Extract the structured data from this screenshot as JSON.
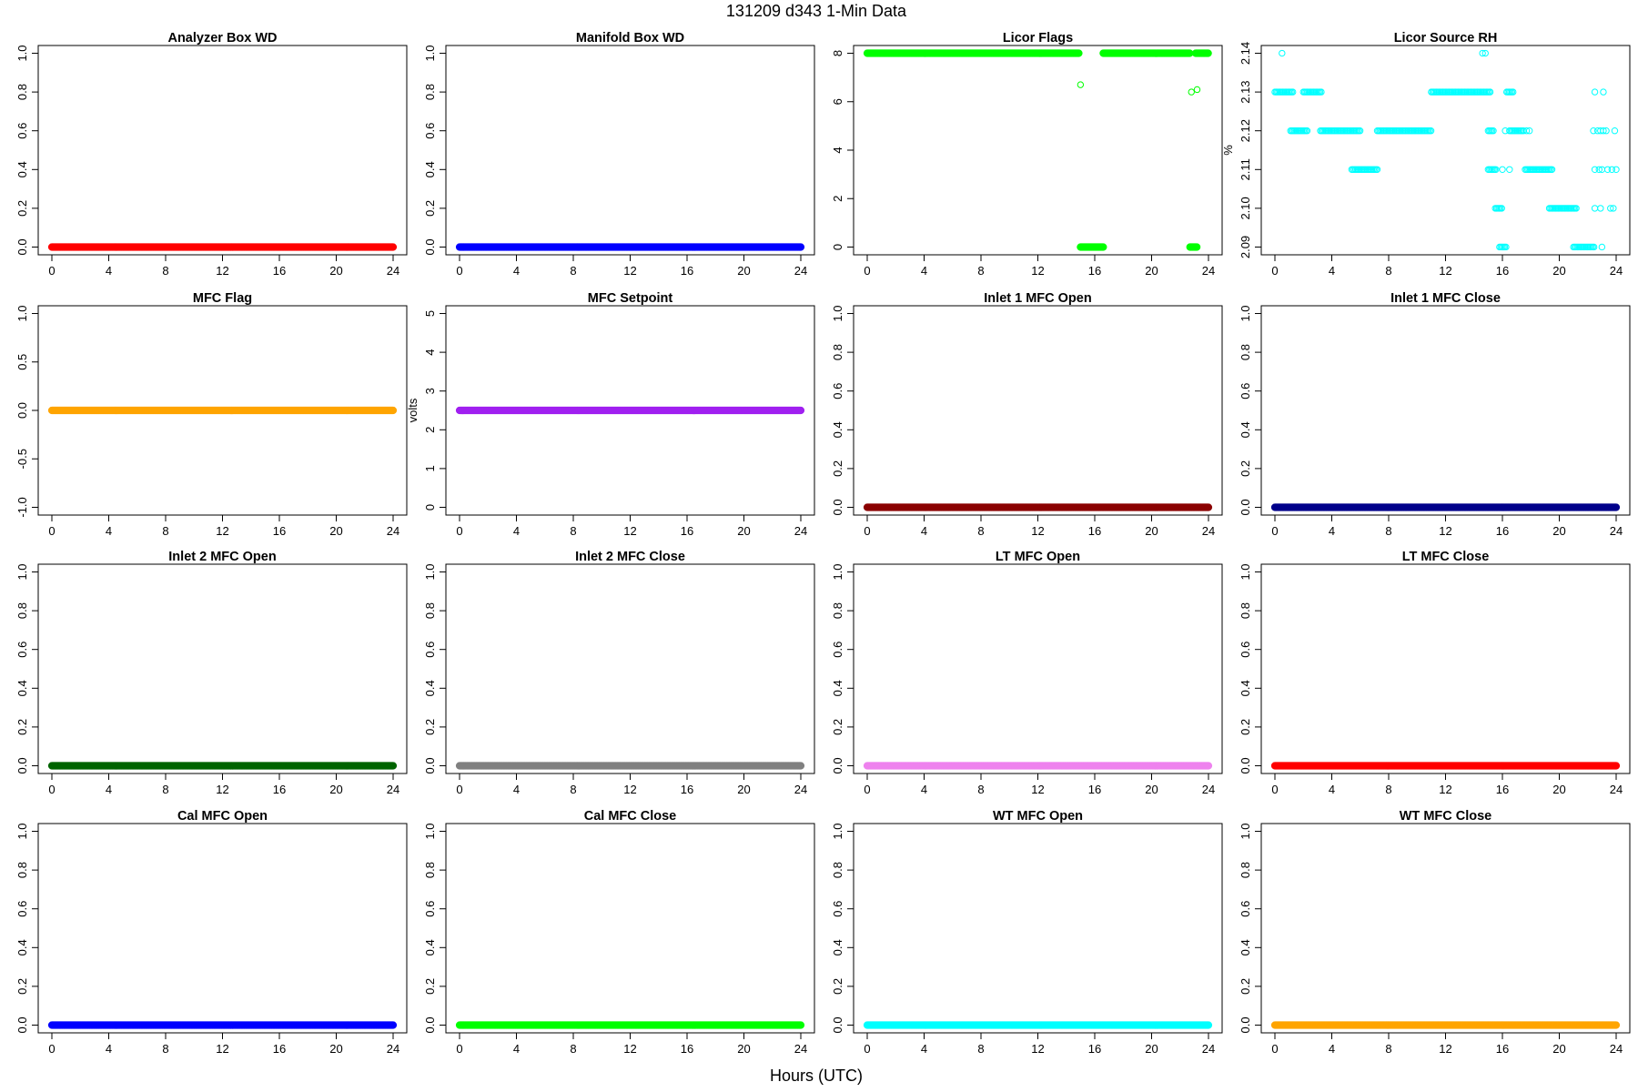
{
  "page_title": "131209   d343   1-Min Data",
  "x_axis_label": "Hours (UTC)",
  "chart_data": [
    {
      "type": "scatter",
      "title": "Analyzer Box WD",
      "ylabel": "",
      "color": "#ff0000",
      "xlim": [
        0,
        24
      ],
      "ylim": [
        0,
        1
      ],
      "xticks": [
        0,
        4,
        8,
        12,
        16,
        20,
        24
      ],
      "yticks": [
        "0.0",
        "0.2",
        "0.4",
        "0.6",
        "0.8",
        "1.0"
      ],
      "filled": true,
      "segments": [
        {
          "x": [
            0,
            24
          ],
          "y": 0
        }
      ]
    },
    {
      "type": "scatter",
      "title": "Manifold Box WD",
      "ylabel": "",
      "color": "#0000ff",
      "xlim": [
        0,
        24
      ],
      "ylim": [
        0,
        1
      ],
      "xticks": [
        0,
        4,
        8,
        12,
        16,
        20,
        24
      ],
      "yticks": [
        "0.0",
        "0.2",
        "0.4",
        "0.6",
        "0.8",
        "1.0"
      ],
      "filled": true,
      "segments": [
        {
          "x": [
            0,
            24
          ],
          "y": 0
        }
      ]
    },
    {
      "type": "scatter",
      "title": "Licor Flags",
      "ylabel": "",
      "color": "#00ff00",
      "xlim": [
        0,
        24
      ],
      "ylim": [
        0,
        8
      ],
      "xticks": [
        0,
        4,
        8,
        12,
        16,
        20,
        24
      ],
      "yticks": [
        "0",
        "2",
        "4",
        "6",
        "8"
      ],
      "filled": true,
      "segments": [
        {
          "x": [
            0,
            14.9
          ],
          "y": 8
        },
        {
          "x": [
            16.6,
            22.7
          ],
          "y": 8
        },
        {
          "x": [
            23.1,
            24
          ],
          "y": 8
        },
        {
          "x": [
            15.0,
            16.6
          ],
          "y": 0
        },
        {
          "x": [
            22.7,
            23.2
          ],
          "y": 0
        }
      ],
      "points": [
        {
          "x": 15.0,
          "y": 6.7
        },
        {
          "x": 16.6,
          "y": 8
        },
        {
          "x": 22.8,
          "y": 6.4
        },
        {
          "x": 23.2,
          "y": 6.5
        }
      ]
    },
    {
      "type": "scatter",
      "title": "Licor Source RH",
      "ylabel": "%",
      "color": "#00ffff",
      "xlim": [
        0,
        24
      ],
      "ylim": [
        2.09,
        2.14
      ],
      "xticks": [
        0,
        4,
        8,
        12,
        16,
        20,
        24
      ],
      "yticks": [
        "2.09",
        "2.10",
        "2.11",
        "2.12",
        "2.13",
        "2.14"
      ],
      "filled": false,
      "segments": [
        {
          "x": [
            0,
            1.3
          ],
          "y": 2.13
        },
        {
          "x": 1.1,
          "y": 2.12,
          "x2": 2.3
        },
        {
          "x": [
            2.0,
            3.3
          ],
          "y": 2.13
        },
        {
          "x": [
            3.2,
            6.0
          ],
          "y": 2.12
        },
        {
          "x": [
            5.4,
            7.2
          ],
          "y": 2.11
        },
        {
          "x": [
            7.2,
            11.0
          ],
          "y": 2.12
        },
        {
          "x": [
            11.0,
            15.2
          ],
          "y": 2.13
        },
        {
          "x": [
            15.0,
            15.4
          ],
          "y": 2.12
        },
        {
          "x": [
            15.0,
            15.6
          ],
          "y": 2.11
        },
        {
          "x": [
            15.5,
            16.0
          ],
          "y": 2.1
        },
        {
          "x": [
            15.8,
            16.3
          ],
          "y": 2.09
        },
        {
          "x": [
            16.3,
            16.8
          ],
          "y": 2.13
        },
        {
          "x": [
            16.5,
            17.5
          ],
          "y": 2.12
        },
        {
          "x": [
            17.6,
            19.5
          ],
          "y": 2.11
        },
        {
          "x": [
            19.3,
            21.2
          ],
          "y": 2.1
        },
        {
          "x": [
            21.0,
            22.5
          ],
          "y": 2.09
        }
      ],
      "points": [
        {
          "x": 0.5,
          "y": 2.14
        },
        {
          "x": 14.6,
          "y": 2.14
        },
        {
          "x": 14.8,
          "y": 2.14
        },
        {
          "x": 16.0,
          "y": 2.11
        },
        {
          "x": 16.2,
          "y": 2.12
        },
        {
          "x": 16.5,
          "y": 2.11
        },
        {
          "x": 17.7,
          "y": 2.12
        },
        {
          "x": 17.9,
          "y": 2.12
        },
        {
          "x": 22.5,
          "y": 2.13
        },
        {
          "x": 23.1,
          "y": 2.13
        },
        {
          "x": 22.4,
          "y": 2.12
        },
        {
          "x": 22.7,
          "y": 2.12
        },
        {
          "x": 22.9,
          "y": 2.12
        },
        {
          "x": 23.1,
          "y": 2.12
        },
        {
          "x": 23.3,
          "y": 2.12
        },
        {
          "x": 23.9,
          "y": 2.12
        },
        {
          "x": 22.5,
          "y": 2.11
        },
        {
          "x": 22.8,
          "y": 2.11
        },
        {
          "x": 23.0,
          "y": 2.11
        },
        {
          "x": 23.4,
          "y": 2.11
        },
        {
          "x": 23.7,
          "y": 2.11
        },
        {
          "x": 24.0,
          "y": 2.11
        },
        {
          "x": 22.5,
          "y": 2.1
        },
        {
          "x": 22.9,
          "y": 2.1
        },
        {
          "x": 23.6,
          "y": 2.1
        },
        {
          "x": 23.8,
          "y": 2.1
        },
        {
          "x": 23.0,
          "y": 2.09
        }
      ]
    },
    {
      "type": "scatter",
      "title": "MFC Flag",
      "ylabel": "",
      "color": "#ffa500",
      "xlim": [
        0,
        24
      ],
      "ylim": [
        -1,
        1
      ],
      "xticks": [
        0,
        4,
        8,
        12,
        16,
        20,
        24
      ],
      "yticks": [
        "-1.0",
        "-0.5",
        "0.0",
        "0.5",
        "1.0"
      ],
      "filled": true,
      "segments": [
        {
          "x": [
            0,
            24
          ],
          "y": 0
        }
      ]
    },
    {
      "type": "scatter",
      "title": "MFC Setpoint",
      "ylabel": "volts",
      "color": "#a020f0",
      "xlim": [
        0,
        24
      ],
      "ylim": [
        0,
        5
      ],
      "xticks": [
        0,
        4,
        8,
        12,
        16,
        20,
        24
      ],
      "yticks": [
        "0",
        "1",
        "2",
        "3",
        "4",
        "5"
      ],
      "filled": true,
      "segments": [
        {
          "x": [
            0,
            24
          ],
          "y": 2.5
        }
      ]
    },
    {
      "type": "scatter",
      "title": "Inlet 1 MFC Open",
      "ylabel": "",
      "color": "#8b0000",
      "xlim": [
        0,
        24
      ],
      "ylim": [
        0,
        1
      ],
      "xticks": [
        0,
        4,
        8,
        12,
        16,
        20,
        24
      ],
      "yticks": [
        "0.0",
        "0.2",
        "0.4",
        "0.6",
        "0.8",
        "1.0"
      ],
      "filled": true,
      "segments": [
        {
          "x": [
            0,
            24
          ],
          "y": 0
        }
      ]
    },
    {
      "type": "scatter",
      "title": "Inlet 1 MFC Close",
      "ylabel": "",
      "color": "#00008b",
      "xlim": [
        0,
        24
      ],
      "ylim": [
        0,
        1
      ],
      "xticks": [
        0,
        4,
        8,
        12,
        16,
        20,
        24
      ],
      "yticks": [
        "0.0",
        "0.2",
        "0.4",
        "0.6",
        "0.8",
        "1.0"
      ],
      "filled": true,
      "segments": [
        {
          "x": [
            0,
            24
          ],
          "y": 0
        }
      ]
    },
    {
      "type": "scatter",
      "title": "Inlet 2 MFC Open",
      "ylabel": "",
      "color": "#006400",
      "xlim": [
        0,
        24
      ],
      "ylim": [
        0,
        1
      ],
      "xticks": [
        0,
        4,
        8,
        12,
        16,
        20,
        24
      ],
      "yticks": [
        "0.0",
        "0.2",
        "0.4",
        "0.6",
        "0.8",
        "1.0"
      ],
      "filled": true,
      "segments": [
        {
          "x": [
            0,
            24
          ],
          "y": 0
        }
      ]
    },
    {
      "type": "scatter",
      "title": "Inlet 2 MFC Close",
      "ylabel": "",
      "color": "#808080",
      "xlim": [
        0,
        24
      ],
      "ylim": [
        0,
        1
      ],
      "xticks": [
        0,
        4,
        8,
        12,
        16,
        20,
        24
      ],
      "yticks": [
        "0.0",
        "0.2",
        "0.4",
        "0.6",
        "0.8",
        "1.0"
      ],
      "filled": true,
      "segments": [
        {
          "x": [
            0,
            24
          ],
          "y": 0
        }
      ]
    },
    {
      "type": "scatter",
      "title": "LT MFC Open",
      "ylabel": "",
      "color": "#ee82ee",
      "xlim": [
        0,
        24
      ],
      "ylim": [
        0,
        1
      ],
      "xticks": [
        0,
        4,
        8,
        12,
        16,
        20,
        24
      ],
      "yticks": [
        "0.0",
        "0.2",
        "0.4",
        "0.6",
        "0.8",
        "1.0"
      ],
      "filled": true,
      "segments": [
        {
          "x": [
            0,
            24
          ],
          "y": 0
        }
      ]
    },
    {
      "type": "scatter",
      "title": "LT MFC Close",
      "ylabel": "",
      "color": "#ff0000",
      "xlim": [
        0,
        24
      ],
      "ylim": [
        0,
        1
      ],
      "xticks": [
        0,
        4,
        8,
        12,
        16,
        20,
        24
      ],
      "yticks": [
        "0.0",
        "0.2",
        "0.4",
        "0.6",
        "0.8",
        "1.0"
      ],
      "filled": true,
      "segments": [
        {
          "x": [
            0,
            24
          ],
          "y": 0
        }
      ]
    },
    {
      "type": "scatter",
      "title": "Cal MFC Open",
      "ylabel": "",
      "color": "#0000ff",
      "xlim": [
        0,
        24
      ],
      "ylim": [
        0,
        1
      ],
      "xticks": [
        0,
        4,
        8,
        12,
        16,
        20,
        24
      ],
      "yticks": [
        "0.0",
        "0.2",
        "0.4",
        "0.6",
        "0.8",
        "1.0"
      ],
      "filled": true,
      "segments": [
        {
          "x": [
            0,
            24
          ],
          "y": 0
        }
      ]
    },
    {
      "type": "scatter",
      "title": "Cal MFC Close",
      "ylabel": "",
      "color": "#00ff00",
      "xlim": [
        0,
        24
      ],
      "ylim": [
        0,
        1
      ],
      "xticks": [
        0,
        4,
        8,
        12,
        16,
        20,
        24
      ],
      "yticks": [
        "0.0",
        "0.2",
        "0.4",
        "0.6",
        "0.8",
        "1.0"
      ],
      "filled": true,
      "segments": [
        {
          "x": [
            0,
            24
          ],
          "y": 0
        }
      ]
    },
    {
      "type": "scatter",
      "title": "WT MFC Open",
      "ylabel": "",
      "color": "#00ffff",
      "xlim": [
        0,
        24
      ],
      "ylim": [
        0,
        1
      ],
      "xticks": [
        0,
        4,
        8,
        12,
        16,
        20,
        24
      ],
      "yticks": [
        "0.0",
        "0.2",
        "0.4",
        "0.6",
        "0.8",
        "1.0"
      ],
      "filled": true,
      "segments": [
        {
          "x": [
            0,
            24
          ],
          "y": 0
        }
      ]
    },
    {
      "type": "scatter",
      "title": "WT MFC Close",
      "ylabel": "",
      "color": "#ffa500",
      "xlim": [
        0,
        24
      ],
      "ylim": [
        0,
        1
      ],
      "xticks": [
        0,
        4,
        8,
        12,
        16,
        20,
        24
      ],
      "yticks": [
        "0.0",
        "0.2",
        "0.4",
        "0.6",
        "0.8",
        "1.0"
      ],
      "filled": true,
      "segments": [
        {
          "x": [
            0,
            24
          ],
          "y": 0
        }
      ]
    }
  ]
}
